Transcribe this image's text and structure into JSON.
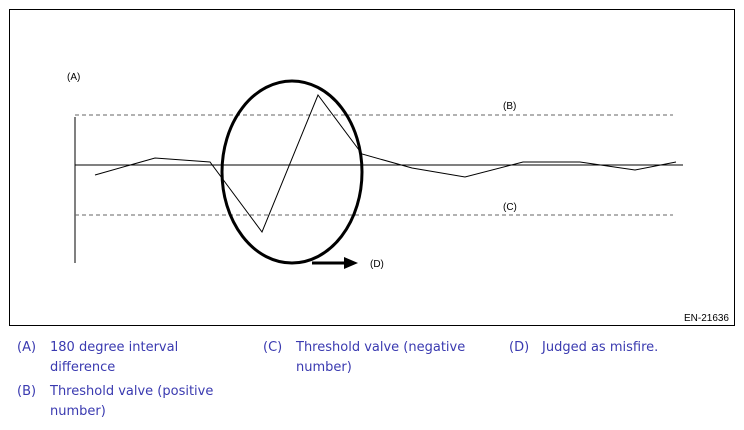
{
  "diagram": {
    "labels": [
      "(A)",
      "(B)",
      "(C)",
      "(D)"
    ],
    "figure_id": "EN-21636"
  },
  "legend": [
    {
      "key": "(A)",
      "text": "180 degree interval difference"
    },
    {
      "key": "(B)",
      "text": "Threshold valve (positive number)"
    },
    {
      "key": "(C)",
      "text": "Threshold valve (negative number)"
    },
    {
      "key": "(D)",
      "text": "Judged as misfire."
    }
  ]
}
